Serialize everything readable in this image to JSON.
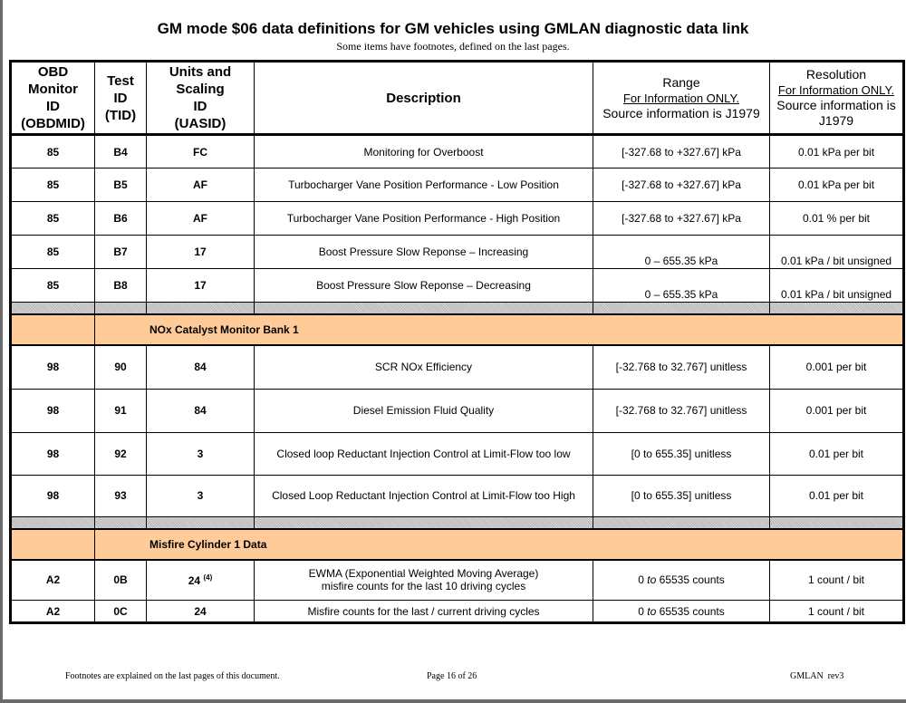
{
  "title": "GM mode $06 data definitions for GM vehicles using GMLAN diagnostic data link",
  "subtitle": "Some items have footnotes, defined on the last pages.",
  "headers": {
    "obdmid": [
      "OBD",
      "Monitor",
      "ID",
      "(OBDMID)"
    ],
    "tid": [
      "Test",
      "ID",
      "(TID)"
    ],
    "uasid": [
      "Units and",
      "Scaling",
      "ID",
      "(UASID)"
    ],
    "description": "Description",
    "range": {
      "title": "Range",
      "note": "For Information ONLY.",
      "source": "Source information is J1979"
    },
    "resolution": {
      "title": "Resolution",
      "note": "For Information ONLY.",
      "source": "Source information is J1979"
    }
  },
  "rows_a": [
    {
      "obdmid": "85",
      "tid": "B4",
      "uasid": "FC",
      "description": "Monitoring for Overboost",
      "range": "[-327.68 to +327.67] kPa",
      "resolution": "0.01 kPa per bit"
    },
    {
      "obdmid": "85",
      "tid": "B5",
      "uasid": "AF",
      "description": "Turbocharger Vane Position Performance - Low Position",
      "range": "[-327.68 to +327.67] kPa",
      "resolution": "0.01 kPa per bit"
    },
    {
      "obdmid": "85",
      "tid": "B6",
      "uasid": "AF",
      "description": "Turbocharger Vane Position Performance - High Position",
      "range": "[-327.68 to +327.67] kPa",
      "resolution": "0.01 % per bit"
    },
    {
      "obdmid": "85",
      "tid": "B7",
      "uasid": "17",
      "description": "Boost Pressure Slow Reponse – Increasing",
      "range": "0 – 655.35 kPa",
      "resolution": "0.01 kPa / bit unsigned"
    },
    {
      "obdmid": "85",
      "tid": "B8",
      "uasid": "17",
      "description": "Boost Pressure Slow Reponse – Decreasing",
      "range": "0 – 655.35 kPa",
      "resolution": "0.01 kPa / bit unsigned"
    }
  ],
  "section_nox": "NOx Catalyst Monitor Bank 1",
  "rows_b": [
    {
      "obdmid": "98",
      "tid": "90",
      "uasid": "84",
      "description": "SCR NOx Efficiency",
      "range": "[-32.768 to 32.767] unitless",
      "resolution": "0.001 per bit"
    },
    {
      "obdmid": "98",
      "tid": "91",
      "uasid": "84",
      "description": "Diesel Emission Fluid Quality",
      "range": "[-32.768 to 32.767] unitless",
      "resolution": "0.001 per bit"
    },
    {
      "obdmid": "98",
      "tid": "92",
      "uasid": "3",
      "description": "Closed loop Reductant Injection Control at Limit-Flow too low",
      "range": "[0 to 655.35] unitless",
      "resolution": "0.01 per bit"
    },
    {
      "obdmid": "98",
      "tid": "93",
      "uasid": "3",
      "description": "Closed Loop Reductant Injection Control at Limit-Flow too High",
      "range": "[0 to 655.35] unitless",
      "resolution": "0.01 per bit"
    }
  ],
  "section_misfire": "Misfire Cylinder 1 Data",
  "rows_c": [
    {
      "obdmid": "A2",
      "tid": "0B",
      "uasid": "24",
      "footnote": "(4)",
      "description_1": "EWMA (Exponential Weighted Moving Average)",
      "description_2": "misfire counts for the last 10 driving cycles",
      "range_a": "0",
      "range_to": "to",
      "range_b": "65535 counts",
      "resolution": "1 count / bit"
    },
    {
      "obdmid": "A2",
      "tid": "0C",
      "uasid": "24",
      "description": "Misfire counts for the last / current driving cycles",
      "range_a": "0",
      "range_to": "to",
      "range_b": "65535 counts",
      "resolution": "1 count / bit"
    }
  ],
  "footer": {
    "left": "Footnotes are explained on the last pages of this document.",
    "center": "Page 16 of 26",
    "right": "GMLAN  rev3"
  }
}
